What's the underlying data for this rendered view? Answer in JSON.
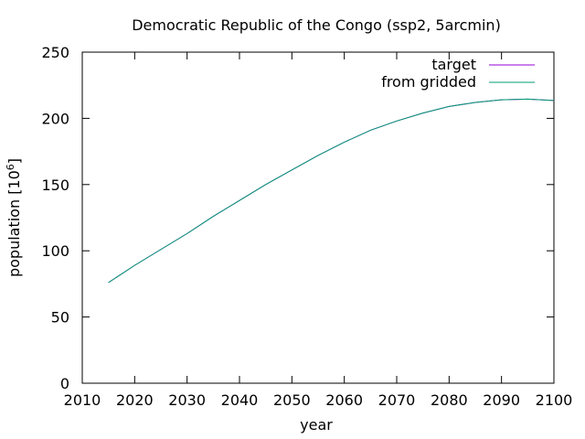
{
  "chart_data": {
    "type": "line",
    "title": "Democratic Republic of the Congo (ssp2, 5arcmin)",
    "xlabel": "year",
    "ylabel_base": "population [10",
    "ylabel_exp": "6",
    "ylabel_close": "]",
    "xlim": [
      2010,
      2100
    ],
    "ylim": [
      0,
      250
    ],
    "xticks": [
      2010,
      2020,
      2030,
      2040,
      2050,
      2060,
      2070,
      2080,
      2090,
      2100
    ],
    "yticks": [
      0,
      50,
      100,
      150,
      200,
      250
    ],
    "grid": false,
    "legend_position": "top-right",
    "x": [
      2015,
      2020,
      2025,
      2030,
      2035,
      2040,
      2045,
      2050,
      2055,
      2060,
      2065,
      2070,
      2075,
      2080,
      2085,
      2090,
      2095,
      2100
    ],
    "series": [
      {
        "name": "target",
        "color": "#9400d3",
        "values": [
          76,
          89,
          101,
          113,
          126,
          138,
          150,
          161,
          172,
          182,
          191,
          198,
          204,
          209,
          212,
          214,
          214.5,
          213.5
        ]
      },
      {
        "name": "from gridded",
        "color": "#009e73",
        "values": [
          76,
          89,
          101,
          113,
          126,
          138,
          150,
          161,
          172,
          182,
          191,
          198,
          204,
          209,
          212,
          214,
          214.5,
          213.5
        ]
      }
    ]
  }
}
